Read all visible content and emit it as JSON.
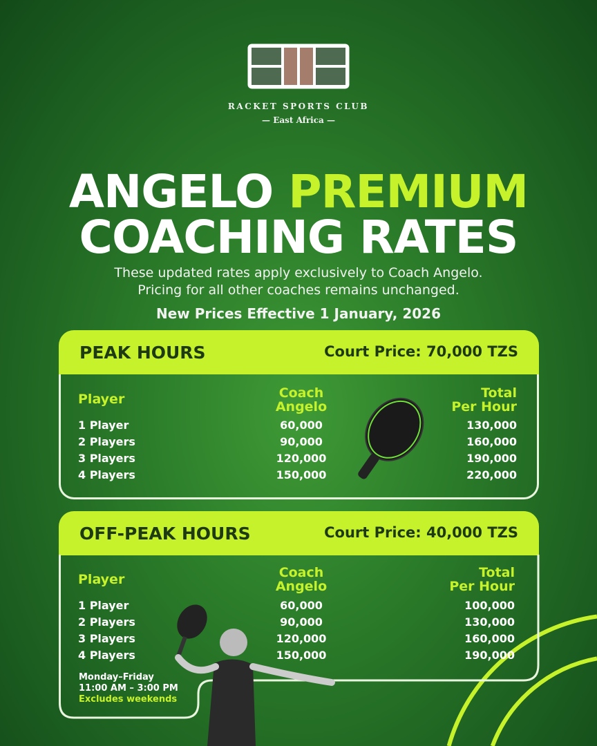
{
  "logo": {
    "name": "RACKET SPORTS CLUB",
    "region": "East Africa"
  },
  "title": {
    "word1": "ANGELO",
    "word2": "PREMIUM",
    "line2": "COACHING RATES"
  },
  "subtitle": [
    "These updated rates apply exclusively to Coach Angelo.",
    "Pricing for all other coaches remains unchanged."
  ],
  "effective": "New Prices Effective 1 January, 2026",
  "colors": {
    "accent": "#c6f22c",
    "background": "#2a7a29"
  },
  "peak": {
    "heading": "PEAK HOURS",
    "court_price": "Court Price: 70,000 TZS",
    "columns": [
      "Player",
      "Coach",
      "Angelo",
      "Total",
      "Per Hour"
    ],
    "rows": [
      [
        "1 Player",
        "60,000",
        "130,000"
      ],
      [
        "2 Players",
        "90,000",
        "160,000"
      ],
      [
        "3 Players",
        "120,000",
        "190,000"
      ],
      [
        "4 Players",
        "150,000",
        "220,000"
      ]
    ]
  },
  "offpeak": {
    "heading": "OFF-PEAK HOURS",
    "court_price": "Court Price: 40,000 TZS",
    "columns": [
      "Player",
      "Coach",
      "Angelo",
      "Total",
      "Per Hour"
    ],
    "rows": [
      [
        "1 Player",
        "60,000",
        "100,000"
      ],
      [
        "2 Players",
        "90,000",
        "130,000"
      ],
      [
        "3 Players",
        "120,000",
        "160,000"
      ],
      [
        "4 Players",
        "150,000",
        "190,000"
      ]
    ],
    "days": "Monday–Friday",
    "hours": "11:00 AM – 3:00 PM",
    "note": "Excludes weekends"
  }
}
